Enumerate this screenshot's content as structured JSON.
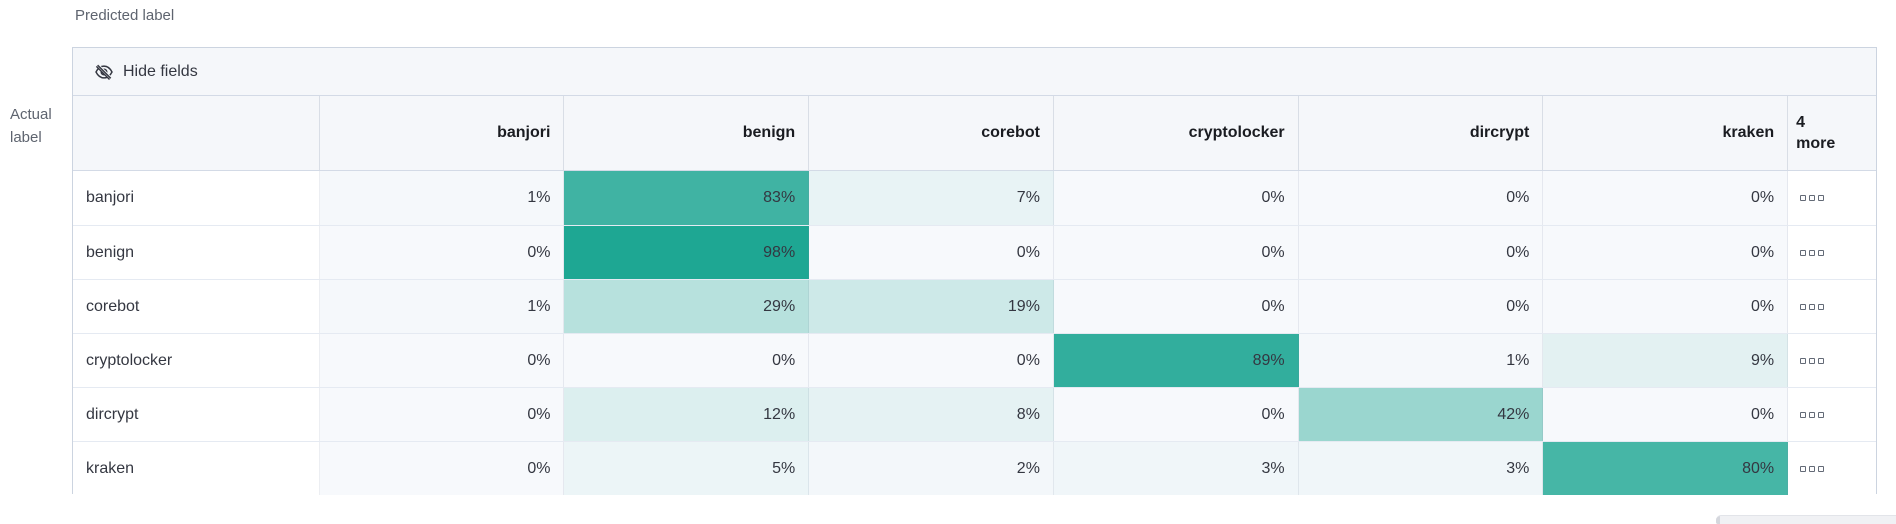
{
  "axis_labels": {
    "predicted": "Predicted label",
    "actual_line1": "Actual",
    "actual_line2": "label"
  },
  "toolbar": {
    "hide_fields_label": "Hide fields",
    "hide_fields_icon": "eye-closed-icon"
  },
  "grid": {
    "columns": [
      "banjori",
      "benign",
      "corebot",
      "cryptolocker",
      "dircrypt",
      "kraken"
    ],
    "more_header": {
      "count": "4",
      "word": "more"
    },
    "value_suffix": "%",
    "row_actions_icon": "boxes-horizontal-icon",
    "rows": [
      {
        "label": "banjori",
        "values": [
          1,
          83,
          7,
          0,
          0,
          0
        ]
      },
      {
        "label": "benign",
        "values": [
          0,
          98,
          0,
          0,
          0,
          0
        ]
      },
      {
        "label": "corebot",
        "values": [
          1,
          29,
          19,
          0,
          0,
          0
        ]
      },
      {
        "label": "cryptolocker",
        "values": [
          0,
          0,
          0,
          89,
          1,
          9
        ]
      },
      {
        "label": "dircrypt",
        "values": [
          0,
          12,
          8,
          0,
          42,
          0
        ]
      },
      {
        "label": "kraken",
        "values": [
          0,
          5,
          2,
          3,
          3,
          80
        ]
      }
    ]
  },
  "colors": {
    "heat_zero": "#F7F9FC",
    "heat_full": "#1AA591",
    "header_bg": "#F5F7FA",
    "border": "#D3DAE6",
    "text": "#343741",
    "header_text": "#1A1C21",
    "axis_text": "#5E646F"
  },
  "chart_data": {
    "type": "heatmap",
    "x_axis_label": "Predicted label",
    "y_axis_label": "Actual label",
    "x": [
      "banjori",
      "benign",
      "corebot",
      "cryptolocker",
      "dircrypt",
      "kraken"
    ],
    "y": [
      "banjori",
      "benign",
      "corebot",
      "cryptolocker",
      "dircrypt",
      "kraken"
    ],
    "values_percent": [
      [
        1,
        83,
        7,
        0,
        0,
        0
      ],
      [
        0,
        98,
        0,
        0,
        0,
        0
      ],
      [
        1,
        29,
        19,
        0,
        0,
        0
      ],
      [
        0,
        0,
        0,
        89,
        1,
        9
      ],
      [
        0,
        12,
        8,
        0,
        42,
        0
      ],
      [
        0,
        5,
        2,
        3,
        3,
        80
      ]
    ],
    "hidden_columns_note": "4 more",
    "value_range": [
      0,
      100
    ],
    "color_scale": [
      "#F7F9FC",
      "#1AA591"
    ]
  }
}
